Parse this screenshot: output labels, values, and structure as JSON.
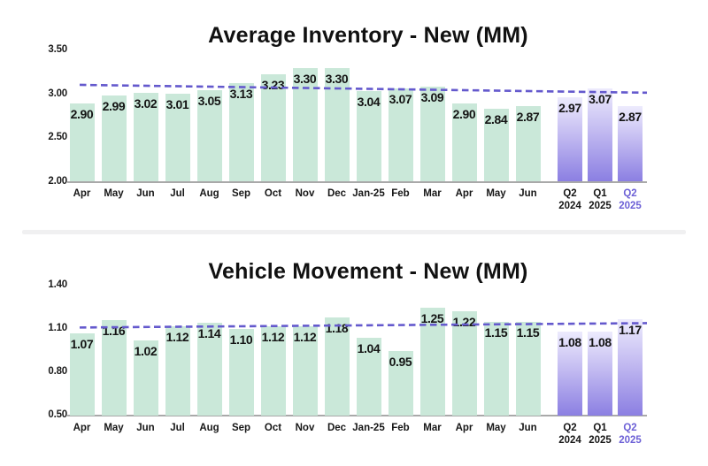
{
  "colors": {
    "bar_month": "#cae8d9",
    "bar_quarter_top": "#edebfd",
    "bar_quarter_bottom": "#8b7fe2",
    "trend_line": "#6459cd",
    "axis_line": "#a9a9a9",
    "text": "#141414",
    "quarter_highlight_text": "#6c60d6",
    "divider": "#f0f0f1"
  },
  "chart_data": [
    {
      "type": "bar",
      "title": "Average Inventory - New (MM)",
      "xlabel": "",
      "ylabel": "",
      "ylim": [
        2.0,
        3.5
      ],
      "y_ticks": [
        "3.50",
        "3.00",
        "2.50",
        "2.00"
      ],
      "grid": false,
      "legend": "none",
      "categories": [
        "Apr",
        "May",
        "Jun",
        "Jul",
        "Aug",
        "Sep",
        "Oct",
        "Nov",
        "Dec",
        "Jan-25",
        "Feb",
        "Mar",
        "Apr",
        "May",
        "Jun"
      ],
      "values": [
        2.9,
        2.99,
        3.02,
        3.01,
        3.05,
        3.13,
        3.23,
        3.3,
        3.3,
        3.04,
        3.07,
        3.09,
        2.9,
        2.84,
        2.87
      ],
      "quarters": [
        {
          "line1": "Q2",
          "line2": "2024",
          "value": 2.97,
          "highlight": false
        },
        {
          "line1": "Q1",
          "line2": "2025",
          "value": 3.07,
          "highlight": false
        },
        {
          "line1": "Q2",
          "line2": "2025",
          "value": 2.87,
          "highlight": true
        }
      ],
      "trend": {
        "type": "dashed-line",
        "start_value": 3.11,
        "end_value": 3.02
      }
    },
    {
      "type": "bar",
      "title": "Vehicle Movement - New (MM)",
      "xlabel": "",
      "ylabel": "",
      "ylim": [
        0.5,
        1.4
      ],
      "y_ticks": [
        "1.40",
        "1.10",
        "0.80",
        "0.50"
      ],
      "grid": false,
      "legend": "none",
      "categories": [
        "Apr",
        "May",
        "Jun",
        "Jul",
        "Aug",
        "Sep",
        "Oct",
        "Nov",
        "Dec",
        "Jan-25",
        "Feb",
        "Mar",
        "Apr",
        "May",
        "Jun"
      ],
      "values": [
        1.07,
        1.16,
        1.02,
        1.12,
        1.14,
        1.1,
        1.12,
        1.12,
        1.18,
        1.04,
        0.95,
        1.25,
        1.22,
        1.15,
        1.15
      ],
      "quarters": [
        {
          "line1": "Q2",
          "line2": "2024",
          "value": 1.08,
          "highlight": false
        },
        {
          "line1": "Q1",
          "line2": "2025",
          "value": 1.08,
          "highlight": false
        },
        {
          "line1": "Q2",
          "line2": "2025",
          "value": 1.17,
          "highlight": true
        }
      ],
      "trend": {
        "type": "dashed-line",
        "start_value": 1.11,
        "end_value": 1.14
      }
    }
  ]
}
